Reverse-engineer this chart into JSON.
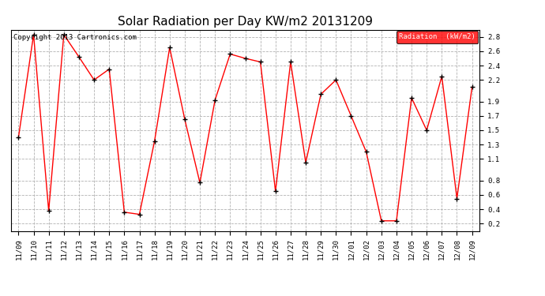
{
  "title": "Solar Radiation per Day KW/m2 20131209",
  "copyright_text": "Copyright 2013 Cartronics.com",
  "legend_label": "Radiation  (kW/m2)",
  "dates": [
    "11/09",
    "11/10",
    "11/11",
    "11/12",
    "11/13",
    "11/14",
    "11/15",
    "11/16",
    "11/17",
    "11/18",
    "11/19",
    "11/20",
    "11/21",
    "11/22",
    "11/23",
    "11/24",
    "11/25",
    "11/26",
    "11/27",
    "11/28",
    "11/29",
    "11/30",
    "12/01",
    "12/02",
    "12/03",
    "12/04",
    "12/05",
    "12/06",
    "12/07",
    "12/08",
    "12/09"
  ],
  "values": [
    1.4,
    2.83,
    0.38,
    2.83,
    2.52,
    2.2,
    2.35,
    0.36,
    0.33,
    1.35,
    2.65,
    1.65,
    0.77,
    1.92,
    2.56,
    2.5,
    2.45,
    0.65,
    2.45,
    1.05,
    2.0,
    2.2,
    1.7,
    1.2,
    0.24,
    0.24,
    1.95,
    1.5,
    2.25,
    0.55,
    2.1
  ],
  "ylim": [
    0.1,
    2.9
  ],
  "yticks": [
    0.2,
    0.4,
    0.6,
    0.8,
    1.1,
    1.3,
    1.5,
    1.7,
    1.9,
    2.2,
    2.4,
    2.6,
    2.8
  ],
  "line_color": "#ff0000",
  "marker_color": "#000000",
  "bg_color": "#ffffff",
  "grid_color": "#aaaaaa",
  "legend_bg": "#ff0000",
  "legend_fg": "#ffffff",
  "title_fontsize": 11,
  "copyright_fontsize": 6.5,
  "tick_fontsize": 6.5
}
